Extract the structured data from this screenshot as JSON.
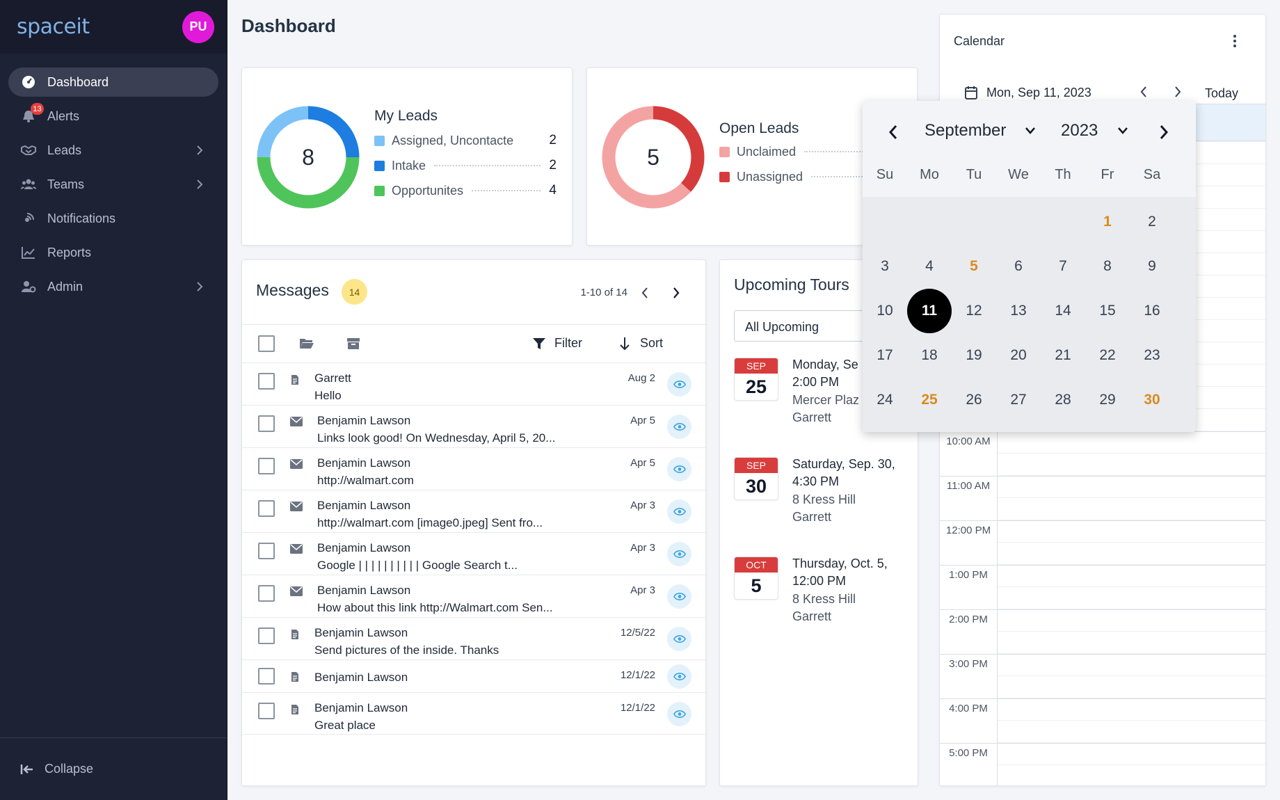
{
  "app": {
    "logo": "spaceit",
    "user_initials": "PU"
  },
  "sidebar": {
    "items": [
      {
        "label": "Dashboard"
      },
      {
        "label": "Alerts",
        "badge": "13"
      },
      {
        "label": "Leads"
      },
      {
        "label": "Teams"
      },
      {
        "label": "Notifications"
      },
      {
        "label": "Reports"
      },
      {
        "label": "Admin"
      }
    ],
    "collapse_label": "Collapse"
  },
  "page": {
    "title": "Dashboard"
  },
  "my_leads": {
    "total": "8",
    "title": "My Leads",
    "rows": [
      {
        "label": "Assigned, Uncontacte",
        "value": "2",
        "color": "#7cc2f7"
      },
      {
        "label": "Intake",
        "value": "2",
        "color": "#1d7de0"
      },
      {
        "label": "Opportunites",
        "value": "4",
        "color": "#4fc45a"
      }
    ]
  },
  "open_leads": {
    "total": "5",
    "title": "Open Leads",
    "rows": [
      {
        "label": "Unclaimed",
        "color": "#f4a3a3"
      },
      {
        "label": "Unassigned",
        "color": "#d63b3b"
      }
    ]
  },
  "messages": {
    "title": "Messages",
    "count": "14",
    "pager": "1-10 of 14",
    "filter_label": "Filter",
    "sort_label": "Sort",
    "rows": [
      {
        "sender": "Garrett",
        "snippet": "Hello",
        "date": "Aug 2",
        "icon": "document-icon"
      },
      {
        "sender": "Benjamin Lawson",
        "snippet": "Links look good! On Wednesday, April 5, 20...",
        "date": "Apr 5",
        "icon": "mail-icon"
      },
      {
        "sender": "Benjamin Lawson",
        "snippet": "http://walmart.com",
        "date": "Apr 5",
        "icon": "mail-icon"
      },
      {
        "sender": "Benjamin Lawson",
        "snippet": "http://walmart.com [image0.jpeg]  Sent fro...",
        "date": "Apr 3",
        "icon": "mail-icon"
      },
      {
        "sender": "Benjamin Lawson",
        "snippet": "Google  | | | | | | | | | |  Google  Search t...",
        "date": "Apr 3",
        "icon": "mail-icon"
      },
      {
        "sender": "Benjamin Lawson",
        "snippet": "How about this link http://Walmart.com  Sen...",
        "date": "Apr 3",
        "icon": "mail-icon"
      },
      {
        "sender": "Benjamin Lawson",
        "snippet": "Send pictures of the inside. Thanks",
        "date": "12/5/22",
        "icon": "document-icon"
      },
      {
        "sender": "Benjamin Lawson",
        "snippet": "",
        "date": "12/1/22",
        "icon": "document-icon"
      },
      {
        "sender": "Benjamin Lawson",
        "snippet": "Great place",
        "date": "12/1/22",
        "icon": "document-icon"
      }
    ]
  },
  "tours": {
    "title": "Upcoming Tours",
    "filter": "All Upcoming",
    "items": [
      {
        "month": "SEP",
        "day": "25",
        "date": "Monday, Se",
        "time": "2:00 PM",
        "place": "Mercer Plaz",
        "agent": "Garrett"
      },
      {
        "month": "SEP",
        "day": "30",
        "date": "Saturday, Sep. 30,",
        "time": "4:30 PM",
        "place": "8 Kress Hill",
        "agent": "Garrett"
      },
      {
        "month": "OCT",
        "day": "5",
        "date": "Thursday, Oct. 5,",
        "time": "12:00 PM",
        "place": "8 Kress Hill",
        "agent": "Garrett"
      }
    ]
  },
  "calendar": {
    "title": "Calendar",
    "current_date": "Mon, Sep 11, 2023",
    "today_label": "Today",
    "times": [
      "10:00 AM",
      "11:00 AM",
      "12:00 PM",
      "1:00 PM",
      "2:00 PM",
      "3:00 PM",
      "4:00 PM",
      "5:00 PM"
    ]
  },
  "picker": {
    "month": "September",
    "year": "2023",
    "weekdays": [
      "Su",
      "Mo",
      "Tu",
      "We",
      "Th",
      "Fr",
      "Sa"
    ],
    "weeks": [
      [
        "",
        "",
        "",
        "",
        "",
        "1",
        "2"
      ],
      [
        "3",
        "4",
        "5",
        "6",
        "7",
        "8",
        "9"
      ],
      [
        "10",
        "11",
        "12",
        "13",
        "14",
        "15",
        "16"
      ],
      [
        "17",
        "18",
        "19",
        "20",
        "21",
        "22",
        "23"
      ],
      [
        "24",
        "25",
        "26",
        "27",
        "28",
        "29",
        "30"
      ]
    ],
    "selected": "11",
    "highlighted": [
      "1",
      "5",
      "25",
      "30"
    ],
    "accent_color": "#d98b1e"
  }
}
